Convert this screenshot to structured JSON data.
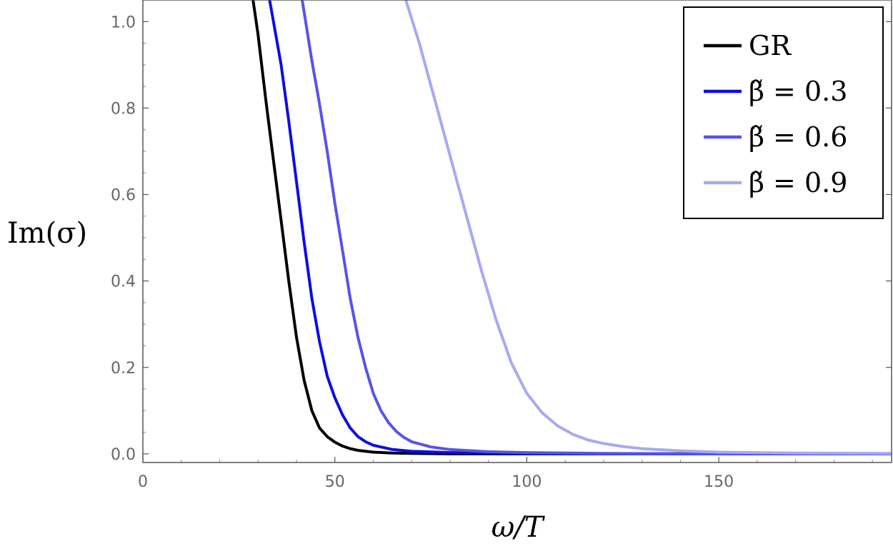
{
  "chart_data": {
    "type": "line",
    "xlabel": "ω/T",
    "ylabel": "Im(σ)",
    "xlim": [
      0,
      195
    ],
    "ylim": [
      -0.02,
      1.05
    ],
    "x_ticks": [
      0,
      50,
      100,
      150
    ],
    "y_ticks": [
      0.0,
      0.2,
      0.4,
      0.6,
      0.8,
      1.0
    ],
    "x_tick_labels": [
      "0",
      "50",
      "100",
      "150"
    ],
    "y_tick_labels": [
      "0.0",
      "0.2",
      "0.4",
      "0.6",
      "0.8",
      "1.0"
    ],
    "legend_position": "top-right",
    "grid": false,
    "series": [
      {
        "name": "GR",
        "color": "#000000",
        "x": [
          28.7,
          30,
          32,
          34,
          36,
          38,
          40,
          42,
          44,
          46,
          48,
          50,
          52,
          54,
          56,
          60,
          65,
          70,
          80,
          100,
          150,
          195
        ],
        "y": [
          1.05,
          0.97,
          0.82,
          0.68,
          0.54,
          0.4,
          0.27,
          0.17,
          0.1,
          0.06,
          0.04,
          0.027,
          0.018,
          0.012,
          0.008,
          0.004,
          0.002,
          0.001,
          0.0,
          0.0,
          0.0,
          0.0
        ]
      },
      {
        "name": "β̃ = 0.3",
        "color": "#0d0de0",
        "x": [
          33.0,
          36,
          38,
          40,
          42,
          44,
          46,
          48,
          50,
          52,
          54,
          56,
          58,
          60,
          65,
          70,
          80,
          100,
          150,
          195
        ],
        "y": [
          1.05,
          0.9,
          0.77,
          0.63,
          0.49,
          0.36,
          0.26,
          0.18,
          0.13,
          0.09,
          0.06,
          0.04,
          0.028,
          0.02,
          0.01,
          0.006,
          0.003,
          0.001,
          0.0,
          0.0
        ]
      },
      {
        "name": "β̃ = 0.6",
        "color": "#5555e8",
        "x": [
          41.5,
          44,
          46,
          48,
          50,
          52,
          54,
          56,
          58,
          60,
          62,
          64,
          66,
          68,
          70,
          75,
          80,
          90,
          100,
          120,
          150,
          195
        ],
        "y": [
          1.05,
          0.91,
          0.81,
          0.7,
          0.58,
          0.47,
          0.36,
          0.27,
          0.2,
          0.14,
          0.1,
          0.072,
          0.052,
          0.038,
          0.028,
          0.016,
          0.01,
          0.005,
          0.003,
          0.001,
          0.0,
          0.0
        ]
      },
      {
        "name": "β̃ = 0.9",
        "color": "#a7a9f2",
        "x": [
          68.5,
          72,
          76,
          80,
          84,
          88,
          92,
          96,
          100,
          104,
          108,
          112,
          116,
          120,
          125,
          130,
          140,
          150,
          170,
          195
        ],
        "y": [
          1.05,
          0.95,
          0.82,
          0.69,
          0.56,
          0.43,
          0.31,
          0.21,
          0.14,
          0.095,
          0.065,
          0.045,
          0.032,
          0.024,
          0.017,
          0.012,
          0.007,
          0.004,
          0.002,
          0.001
        ]
      }
    ]
  }
}
